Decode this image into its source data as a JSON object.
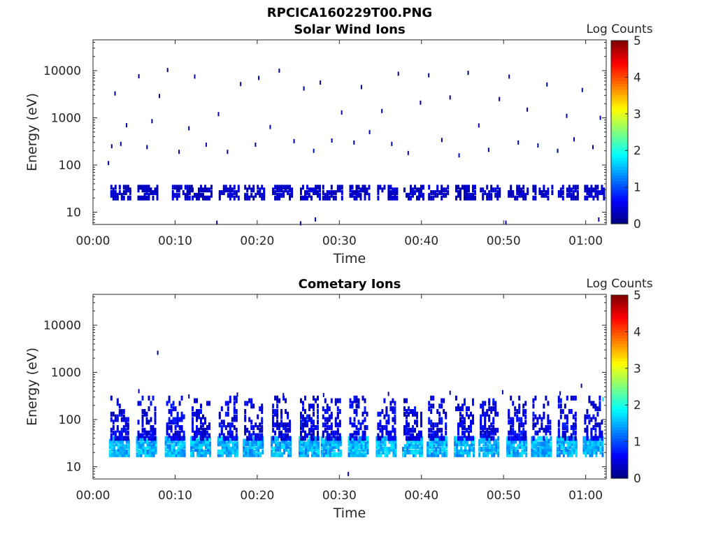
{
  "figure": {
    "title": "RPCICA160229T00.PNG"
  },
  "colors": {
    "colormap": [
      "#00007f",
      "#0000ff",
      "#007fff",
      "#00ffff",
      "#7fff7f",
      "#ffff00",
      "#ff7f00",
      "#ff0000",
      "#7f0000"
    ],
    "axis": "#262626",
    "background": "#ffffff"
  },
  "chart_data": [
    {
      "type": "heatmap",
      "title": "Solar Wind Ions",
      "xlabel": "Time",
      "ylabel": "Energy (eV)",
      "colorbar_label": "Log Counts",
      "x_ticks": [
        "00:00",
        "00:10",
        "00:20",
        "00:30",
        "00:40",
        "00:50",
        "01:00"
      ],
      "x_tick_minutes": [
        0,
        10,
        20,
        30,
        40,
        50,
        60
      ],
      "xlim_minutes": [
        0,
        62.5
      ],
      "y_ticks": [
        "10",
        "100",
        "1000",
        "10000"
      ],
      "y_tick_values": [
        10,
        100,
        1000,
        10000
      ],
      "y_scale": "log",
      "ylim": [
        5.5,
        45000
      ],
      "colorbar_ticks": [
        "0",
        "1",
        "2",
        "3",
        "4",
        "5"
      ],
      "colorbar_range": [
        0,
        5
      ],
      "grid": false,
      "description_data": {
        "scan_minutes": [
          3.3,
          6.6,
          10.8,
          13.2,
          16.5,
          19.6,
          23.0,
          26.4,
          29.1,
          32.4,
          35.8,
          39.0,
          42.0,
          45.3,
          48.3,
          51.7,
          54.7,
          57.8,
          61.0
        ],
        "band_energy_eV": [
          20,
          38
        ],
        "band_log_counts": [
          0.2,
          0.5
        ],
        "sparse_points": [
          [
            1.8,
            110,
            0.2
          ],
          [
            2.2,
            250,
            0.2
          ],
          [
            2.6,
            3300,
            0.1
          ],
          [
            3.3,
            280,
            0.2
          ],
          [
            4.0,
            700,
            0.2
          ],
          [
            5.5,
            7600,
            0.1
          ],
          [
            6.5,
            240,
            0.2
          ],
          [
            7.1,
            850,
            0.2
          ],
          [
            8.0,
            2900,
            0.1
          ],
          [
            9.0,
            10300,
            0.1
          ],
          [
            10.4,
            190,
            0.2
          ],
          [
            11.6,
            600,
            0.2
          ],
          [
            12.3,
            7500,
            0.1
          ],
          [
            13.7,
            270,
            0.2
          ],
          [
            15.2,
            1200,
            0.2
          ],
          [
            16.3,
            190,
            0.2
          ],
          [
            17.9,
            5200,
            0.1
          ],
          [
            19.7,
            270,
            0.2
          ],
          [
            20.1,
            7000,
            0.1
          ],
          [
            21.5,
            640,
            0.2
          ],
          [
            22.6,
            10000,
            0.1
          ],
          [
            24.4,
            320,
            0.2
          ],
          [
            25.6,
            4200,
            0.1
          ],
          [
            26.8,
            200,
            0.2
          ],
          [
            27.6,
            5600,
            0.1
          ],
          [
            29.0,
            330,
            0.2
          ],
          [
            30.2,
            1300,
            0.2
          ],
          [
            31.7,
            300,
            0.2
          ],
          [
            32.6,
            4500,
            0.1
          ],
          [
            33.6,
            500,
            0.2
          ],
          [
            35.1,
            1400,
            0.2
          ],
          [
            36.3,
            280,
            0.2
          ],
          [
            37.1,
            8600,
            0.1
          ],
          [
            38.3,
            180,
            0.2
          ],
          [
            39.8,
            2100,
            0.2
          ],
          [
            40.8,
            8000,
            0.1
          ],
          [
            42.4,
            340,
            0.2
          ],
          [
            43.4,
            2700,
            0.1
          ],
          [
            44.5,
            160,
            0.2
          ],
          [
            45.6,
            9000,
            0.1
          ],
          [
            46.9,
            690,
            0.2
          ],
          [
            48.1,
            210,
            0.2
          ],
          [
            49.4,
            2500,
            0.1
          ],
          [
            50.6,
            7500,
            0.1
          ],
          [
            51.7,
            300,
            0.2
          ],
          [
            52.8,
            1500,
            0.2
          ],
          [
            54.1,
            260,
            0.2
          ],
          [
            55.2,
            5100,
            0.1
          ],
          [
            56.5,
            200,
            0.2
          ],
          [
            57.6,
            1100,
            0.2
          ],
          [
            58.5,
            350,
            0.2
          ],
          [
            59.5,
            3900,
            0.1
          ],
          [
            60.8,
            240,
            0.2
          ],
          [
            61.7,
            1000,
            0.2
          ],
          [
            25.2,
            5.8,
            0.3
          ],
          [
            27.0,
            7.0,
            0.3
          ],
          [
            61.5,
            7.0,
            0.3
          ],
          [
            50.2,
            6.0,
            0.3
          ],
          [
            15.0,
            6.0,
            0.3
          ]
        ]
      }
    },
    {
      "type": "heatmap",
      "title": "Cometary Ions",
      "xlabel": "Time",
      "ylabel": "Energy (eV)",
      "colorbar_label": "Log Counts",
      "x_ticks": [
        "00:00",
        "00:10",
        "00:20",
        "00:30",
        "00:40",
        "00:50",
        "01:00"
      ],
      "x_tick_minutes": [
        0,
        10,
        20,
        30,
        40,
        50,
        60
      ],
      "xlim_minutes": [
        0,
        62.5
      ],
      "y_ticks": [
        "10",
        "100",
        "1000",
        "10000"
      ],
      "y_tick_values": [
        10,
        100,
        1000,
        10000
      ],
      "y_scale": "log",
      "ylim": [
        5.5,
        45000
      ],
      "colorbar_ticks": [
        "0",
        "1",
        "2",
        "3",
        "4",
        "5"
      ],
      "colorbar_range": [
        0,
        5
      ],
      "grid": false,
      "description_data": {
        "scan_minutes": [
          3.3,
          6.6,
          10.1,
          13.2,
          16.5,
          19.6,
          23.0,
          26.4,
          29.1,
          32.4,
          35.8,
          39.0,
          42.0,
          45.3,
          48.3,
          51.7,
          54.7,
          57.8,
          61.0
        ],
        "core_energy_eV": [
          18,
          40
        ],
        "core_log_counts": [
          1.2,
          1.8
        ],
        "plume_energy_eV": [
          40,
          300
        ],
        "plume_log_counts": [
          0.2,
          0.8
        ],
        "sparse_points": [
          [
            7.8,
            2600,
            0.1
          ],
          [
            5.5,
            400,
            0.2
          ],
          [
            11.6,
            310,
            0.2
          ],
          [
            17.5,
            340,
            0.2
          ],
          [
            23.1,
            330,
            0.2
          ],
          [
            28.0,
            330,
            0.2
          ],
          [
            35.9,
            350,
            0.2
          ],
          [
            43.4,
            370,
            0.2
          ],
          [
            49.8,
            380,
            0.2
          ],
          [
            56.8,
            360,
            0.2
          ],
          [
            59.4,
            520,
            0.2
          ],
          [
            62.0,
            270,
            1.8
          ],
          [
            31.0,
            7.0,
            0.3
          ]
        ]
      }
    }
  ]
}
